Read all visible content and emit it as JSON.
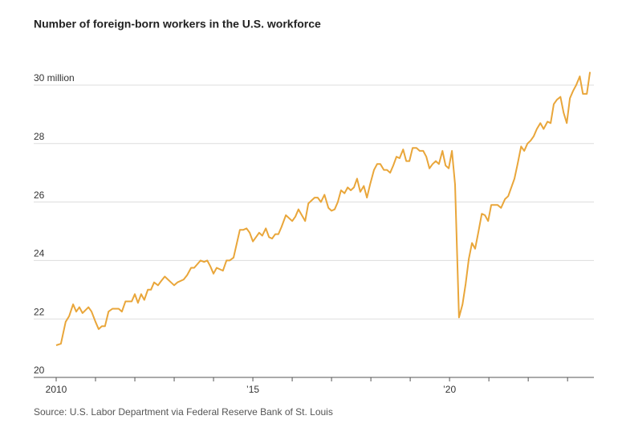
{
  "chart_data": {
    "type": "line",
    "title": "Number of foreign-born workers in the U.S. workforce",
    "source": "Source: U.S. Labor Department via Federal Reserve Bank of St. Louis",
    "xlim": [
      2010,
      2023.67
    ],
    "xticks": [
      2010,
      {
        "value": 2015,
        "label": "’15"
      },
      {
        "value": 2020,
        "label": "’20"
      }
    ],
    "xminor_ticks": [
      2011,
      2012,
      2013,
      2014,
      2016,
      2017,
      2018,
      2019,
      2021,
      2022,
      2023
    ],
    "ylim": [
      20,
      31
    ],
    "yticks": [
      20,
      22,
      24,
      26,
      28,
      {
        "value": 30,
        "label": "30 million"
      }
    ],
    "grid": true,
    "series": [
      {
        "name": "Foreign-born workers",
        "color": "#e9a63a",
        "x": [
          2010.0,
          2010.12,
          2010.24,
          2010.33,
          2010.43,
          2010.51,
          2010.59,
          2010.67,
          2010.82,
          2010.9,
          2011.0,
          2011.08,
          2011.16,
          2011.24,
          2011.33,
          2011.43,
          2011.59,
          2011.67,
          2011.76,
          2011.92,
          2012.0,
          2012.08,
          2012.16,
          2012.24,
          2012.33,
          2012.41,
          2012.49,
          2012.59,
          2012.67,
          2012.76,
          2012.92,
          2013.0,
          2013.08,
          2013.24,
          2013.33,
          2013.43,
          2013.51,
          2013.67,
          2013.76,
          2013.84,
          2013.92,
          2014.0,
          2014.08,
          2014.24,
          2014.33,
          2014.41,
          2014.51,
          2014.67,
          2014.76,
          2014.84,
          2014.92,
          2015.0,
          2015.08,
          2015.16,
          2015.24,
          2015.33,
          2015.41,
          2015.49,
          2015.57,
          2015.65,
          2015.73,
          2015.84,
          2016.0,
          2016.08,
          2016.16,
          2016.33,
          2016.41,
          2016.57,
          2016.65,
          2016.73,
          2016.82,
          2016.92,
          2017.0,
          2017.08,
          2017.16,
          2017.24,
          2017.33,
          2017.41,
          2017.49,
          2017.57,
          2017.65,
          2017.73,
          2017.82,
          2017.9,
          2017.98,
          2018.08,
          2018.16,
          2018.24,
          2018.33,
          2018.41,
          2018.49,
          2018.57,
          2018.65,
          2018.73,
          2018.82,
          2018.9,
          2018.98,
          2019.06,
          2019.16,
          2019.24,
          2019.33,
          2019.41,
          2019.49,
          2019.57,
          2019.65,
          2019.73,
          2019.82,
          2019.9,
          2019.98,
          2020.06,
          2020.14,
          2020.24,
          2020.33,
          2020.41,
          2020.49,
          2020.57,
          2020.65,
          2020.73,
          2020.82,
          2020.9,
          2020.98,
          2021.06,
          2021.22,
          2021.31,
          2021.41,
          2021.49,
          2021.57,
          2021.65,
          2021.73,
          2021.82,
          2021.9,
          2021.98,
          2022.06,
          2022.14,
          2022.22,
          2022.31,
          2022.39,
          2022.49,
          2022.57,
          2022.65,
          2022.73,
          2022.82,
          2022.9,
          2022.98,
          2023.06,
          2023.14,
          2023.22,
          2023.31,
          2023.39,
          2023.49,
          2023.57
        ],
        "values": [
          21.1,
          21.15,
          21.9,
          22.1,
          22.5,
          22.25,
          22.4,
          22.2,
          22.4,
          22.25,
          21.9,
          21.65,
          21.75,
          21.75,
          22.25,
          22.35,
          22.35,
          22.25,
          22.6,
          22.6,
          22.85,
          22.55,
          22.85,
          22.65,
          23.0,
          23.0,
          23.25,
          23.15,
          23.3,
          23.45,
          23.25,
          23.15,
          23.25,
          23.35,
          23.5,
          23.75,
          23.75,
          24.0,
          23.95,
          24.0,
          23.8,
          23.55,
          23.75,
          23.65,
          24.0,
          24.0,
          24.1,
          25.05,
          25.05,
          25.1,
          24.95,
          24.65,
          24.8,
          24.95,
          24.85,
          25.1,
          24.8,
          24.75,
          24.9,
          24.9,
          25.15,
          25.55,
          25.35,
          25.5,
          25.75,
          25.35,
          25.95,
          26.15,
          26.15,
          26.0,
          26.25,
          25.8,
          25.7,
          25.75,
          26.0,
          26.4,
          26.3,
          26.5,
          26.4,
          26.5,
          26.8,
          26.35,
          26.55,
          26.15,
          26.6,
          27.1,
          27.3,
          27.3,
          27.1,
          27.1,
          27.0,
          27.25,
          27.55,
          27.5,
          27.8,
          27.4,
          27.4,
          27.85,
          27.85,
          27.75,
          27.75,
          27.55,
          27.15,
          27.3,
          27.4,
          27.3,
          27.75,
          27.25,
          27.15,
          27.75,
          26.6,
          22.05,
          22.5,
          23.2,
          24.05,
          24.6,
          24.4,
          24.95,
          25.6,
          25.55,
          25.35,
          25.9,
          25.9,
          25.8,
          26.1,
          26.2,
          26.5,
          26.8,
          27.3,
          27.9,
          27.75,
          28.0,
          28.1,
          28.25,
          28.5,
          28.7,
          28.5,
          28.75,
          28.7,
          29.35,
          29.5,
          29.6,
          29.05,
          28.7,
          29.55,
          29.8,
          30.0,
          30.3,
          29.7,
          29.7,
          30.45
        ]
      }
    ]
  }
}
